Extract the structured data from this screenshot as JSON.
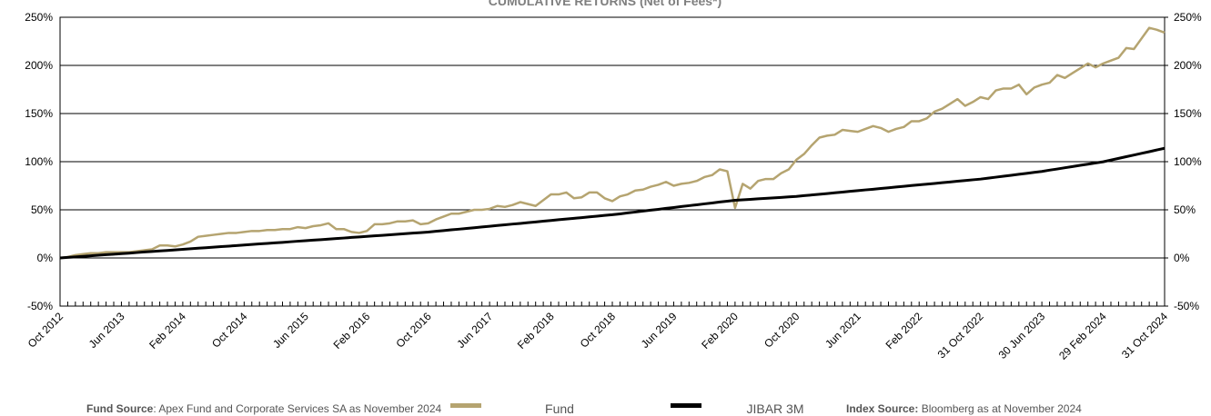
{
  "chart_data": {
    "type": "line",
    "title": "CUMULATIVE RETURNS (Net of Fees*)",
    "categories": [
      "Oct 2012",
      null,
      null,
      null,
      null,
      null,
      null,
      null,
      "Jun 2013",
      null,
      null,
      null,
      null,
      null,
      null,
      null,
      "Feb 2014",
      null,
      null,
      null,
      null,
      null,
      null,
      null,
      "Oct 2014",
      null,
      null,
      null,
      null,
      null,
      null,
      null,
      "Jun 2015",
      null,
      null,
      null,
      null,
      null,
      null,
      null,
      "Feb 2016",
      null,
      null,
      null,
      null,
      null,
      null,
      null,
      "Oct 2016",
      null,
      null,
      null,
      null,
      null,
      null,
      null,
      "Jun 2017",
      null,
      null,
      null,
      null,
      null,
      null,
      null,
      "Feb 2018",
      null,
      null,
      null,
      null,
      null,
      null,
      null,
      "Oct 2018",
      null,
      null,
      null,
      null,
      null,
      null,
      null,
      "Jun 2019",
      null,
      null,
      null,
      null,
      null,
      null,
      null,
      "Feb 2020",
      null,
      null,
      null,
      null,
      null,
      null,
      null,
      "Oct 2020",
      null,
      null,
      null,
      null,
      null,
      null,
      null,
      "Jun 2021",
      null,
      null,
      null,
      null,
      null,
      null,
      null,
      "Feb 2022",
      null,
      null,
      null,
      null,
      null,
      null,
      null,
      "31 Oct 2022",
      null,
      null,
      null,
      null,
      null,
      null,
      null,
      "30 Jun 2023",
      null,
      null,
      null,
      null,
      null,
      null,
      null,
      "29 Feb 2024",
      null,
      null,
      null,
      null,
      null,
      null,
      null,
      "31 Oct 2024"
    ],
    "series": [
      {
        "name": "Fund",
        "color": "#b5a470",
        "values": [
          0,
          1,
          3,
          4,
          5,
          5,
          6,
          6,
          6,
          6,
          7,
          8,
          9,
          13,
          13,
          12,
          14,
          17,
          22,
          23,
          24,
          25,
          26,
          26,
          27,
          28,
          28,
          29,
          29,
          30,
          30,
          32,
          31,
          33,
          34,
          36,
          30,
          30,
          27,
          26,
          28,
          35,
          35,
          36,
          38,
          38,
          39,
          35,
          36,
          40,
          43,
          46,
          46,
          48,
          50,
          50,
          51,
          54,
          53,
          55,
          58,
          56,
          54,
          60,
          66,
          66,
          68,
          62,
          63,
          68,
          68,
          62,
          59,
          64,
          66,
          70,
          71,
          74,
          76,
          79,
          75,
          77,
          78,
          80,
          84,
          86,
          92,
          90,
          52,
          77,
          72,
          80,
          82,
          82,
          88,
          92,
          102,
          108,
          117,
          125,
          127,
          128,
          133,
          132,
          131,
          134,
          137,
          135,
          131,
          134,
          136,
          142,
          142,
          145,
          152,
          155,
          160,
          165,
          158,
          162,
          167,
          165,
          174,
          176,
          176,
          180,
          170,
          177,
          180,
          182,
          190,
          187,
          192,
          197,
          202,
          198,
          202,
          205,
          208,
          218,
          217,
          228,
          239,
          237,
          234
        ]
      },
      {
        "name": "JIBAR 3M",
        "color": "#000000",
        "values": [
          0,
          0.6,
          1.1,
          1.7,
          2.2,
          2.8,
          3.4,
          3.9,
          4.5,
          5,
          5.6,
          6.2,
          6.7,
          7.3,
          7.8,
          8.4,
          9,
          9.5,
          10.1,
          10.6,
          11.2,
          11.8,
          12.3,
          12.9,
          13.4,
          14,
          14.6,
          15.1,
          15.7,
          16.2,
          16.8,
          17.4,
          17.9,
          18.5,
          19,
          19.6,
          20.2,
          20.7,
          21.3,
          21.8,
          22.4,
          23,
          23.5,
          24.1,
          24.6,
          25.2,
          25.8,
          26.3,
          26.9,
          27.7,
          28.4,
          29.2,
          29.9,
          30.7,
          31.4,
          32.2,
          32.9,
          33.7,
          34.4,
          35.2,
          35.9,
          36.7,
          37.4,
          38.2,
          38.9,
          39.7,
          40.4,
          41.2,
          41.9,
          42.7,
          43.4,
          44.2,
          44.9,
          45.8,
          46.8,
          47.7,
          48.7,
          49.6,
          50.5,
          51.5,
          52.4,
          53.4,
          54.3,
          55.2,
          56.2,
          57.1,
          58.1,
          59,
          59.9,
          60.4,
          60.9,
          61.4,
          61.9,
          62.4,
          62.9,
          63.4,
          63.9,
          64.7,
          65.4,
          66.2,
          66.9,
          67.7,
          68.4,
          69.2,
          69.9,
          70.7,
          71.4,
          72.2,
          72.9,
          73.7,
          74.4,
          75.2,
          75.9,
          76.7,
          77.4,
          78.2,
          78.9,
          79.7,
          80.4,
          81.2,
          81.9,
          82.9,
          83.9,
          84.9,
          85.9,
          86.9,
          87.9,
          88.9,
          89.9,
          91.2,
          92.4,
          93.7,
          94.9,
          96.2,
          97.4,
          98.7,
          99.9,
          101.7,
          103.4,
          105.2,
          106.9,
          108.7,
          110.4,
          112.2,
          113.9
        ]
      }
    ],
    "ylim": [
      -50,
      250
    ],
    "yticks": [
      {
        "value": -50,
        "label": "-50%"
      },
      {
        "value": 0,
        "label": "0%"
      },
      {
        "value": 50,
        "label": "50%"
      },
      {
        "value": 100,
        "label": "100%"
      },
      {
        "value": 150,
        "label": "150%"
      },
      {
        "value": 200,
        "label": "200%"
      },
      {
        "value": 250,
        "label": "250%"
      }
    ],
    "y2lim": [
      -50,
      250
    ],
    "y2ticks": [
      {
        "value": -50,
        "label": "-50%"
      },
      {
        "value": 0,
        "label": "0%"
      },
      {
        "value": 50,
        "label": "50%"
      },
      {
        "value": 100,
        "label": "100%"
      },
      {
        "value": 150,
        "label": "150%"
      },
      {
        "value": 200,
        "label": "200%"
      },
      {
        "value": 250,
        "label": "250%"
      }
    ],
    "grid": true,
    "footer": {
      "fund_source_label": "Fund Source",
      "fund_source_text": ": Apex Fund and Corporate Services SA as November 2024",
      "index_source_label": "Index Source:",
      "index_source_text": " Bloomberg as at November 2024"
    }
  }
}
